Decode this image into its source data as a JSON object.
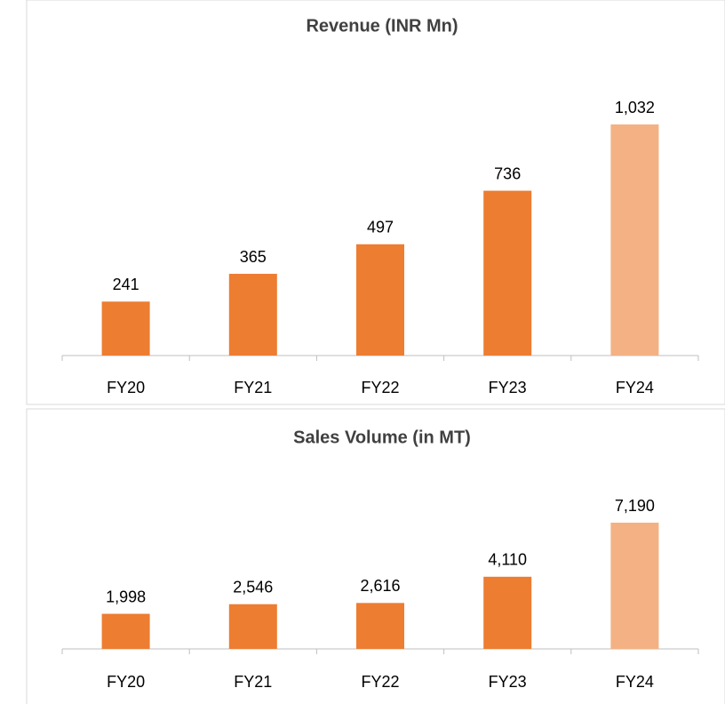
{
  "chart_data": [
    {
      "type": "bar",
      "title": "Revenue (INR Mn)",
      "categories": [
        "FY20",
        "FY21",
        "FY22",
        "FY23",
        "FY24"
      ],
      "values": [
        241,
        365,
        497,
        736,
        1032
      ],
      "value_labels": [
        "241",
        "365",
        "497",
        "736",
        "1,032"
      ],
      "colors": [
        "#ed7d31",
        "#ed7d31",
        "#ed7d31",
        "#ed7d31",
        "#f4b183"
      ]
    },
    {
      "type": "bar",
      "title": "Sales Volume (in MT)",
      "categories": [
        "FY20",
        "FY21",
        "FY22",
        "FY23",
        "FY24"
      ],
      "values": [
        1998,
        2546,
        2616,
        4110,
        7190
      ],
      "value_labels": [
        "1,998",
        "2,546",
        "2,616",
        "4,110",
        "7,190"
      ],
      "colors": [
        "#ed7d31",
        "#ed7d31",
        "#ed7d31",
        "#ed7d31",
        "#f4b183"
      ]
    }
  ]
}
